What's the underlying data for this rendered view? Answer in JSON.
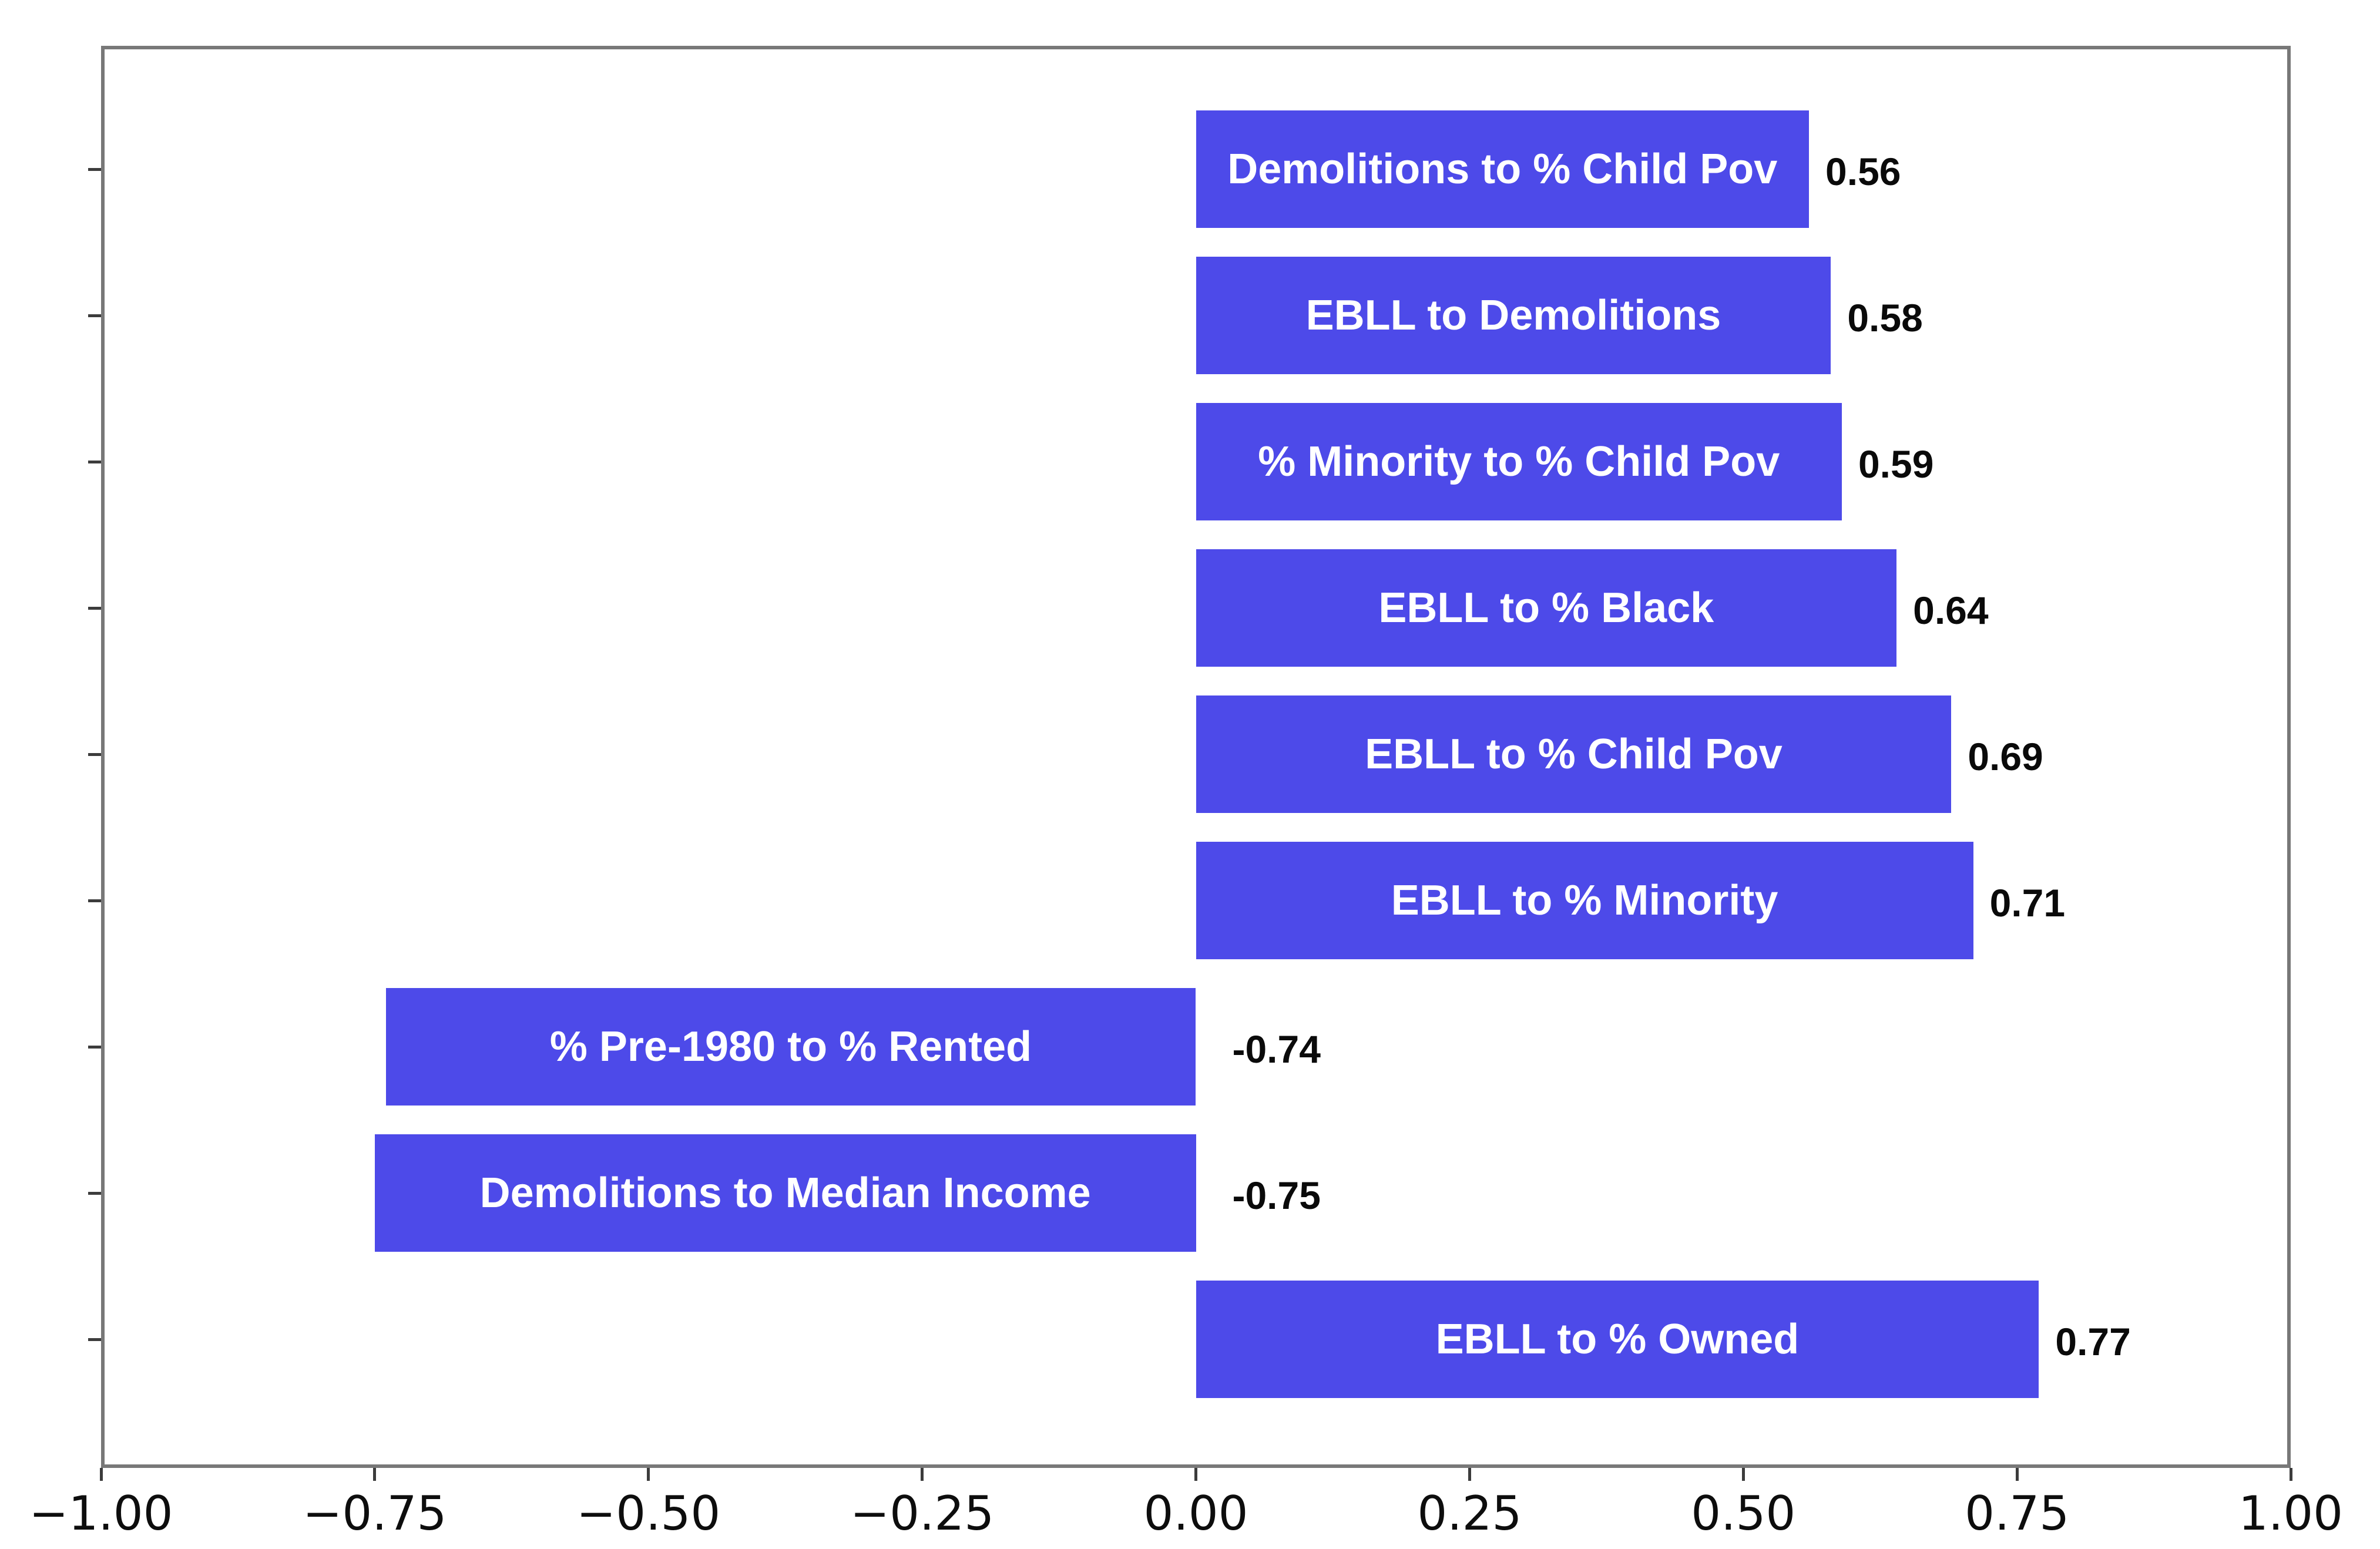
{
  "chart_data": {
    "type": "bar",
    "orientation": "horizontal",
    "title": "",
    "xlabel": "",
    "ylabel": "",
    "categories": [
      "Demolitions to % Child Pov",
      "EBLL to Demolitions",
      "% Minority to % Child Pov",
      "EBLL to % Black",
      "EBLL to % Child Pov",
      "EBLL to % Minority",
      "% Pre-1980 to % Rented",
      "Demolitions to Median Income",
      "EBLL to % Owned"
    ],
    "values": [
      0.56,
      0.58,
      0.59,
      0.64,
      0.69,
      0.71,
      -0.74,
      -0.75,
      0.77
    ],
    "value_labels": [
      "0.56",
      "0.58",
      "0.59",
      "0.64",
      "0.69",
      "0.71",
      "-0.74",
      "-0.75",
      "0.77"
    ],
    "xlim": [
      -1.0,
      1.0
    ],
    "x_tick_values": [
      -1.0,
      -0.75,
      -0.5,
      -0.25,
      0.0,
      0.25,
      0.5,
      0.75,
      1.0
    ],
    "x_ticks": [
      "−1.00",
      "−0.75",
      "−0.50",
      "−0.25",
      "0.00",
      "0.25",
      "0.50",
      "0.75",
      "1.00"
    ],
    "grid": false,
    "legend": false,
    "colors": {
      "bar_fill": "#4d4ae9",
      "bar_label_text": "#ffffff",
      "value_label_text": "#0a0a0a",
      "tick_label_text": "#0d0d0d",
      "axis_frame": "#787878",
      "tick_mark": "#3c3c3c",
      "background": "#ffffff"
    }
  }
}
